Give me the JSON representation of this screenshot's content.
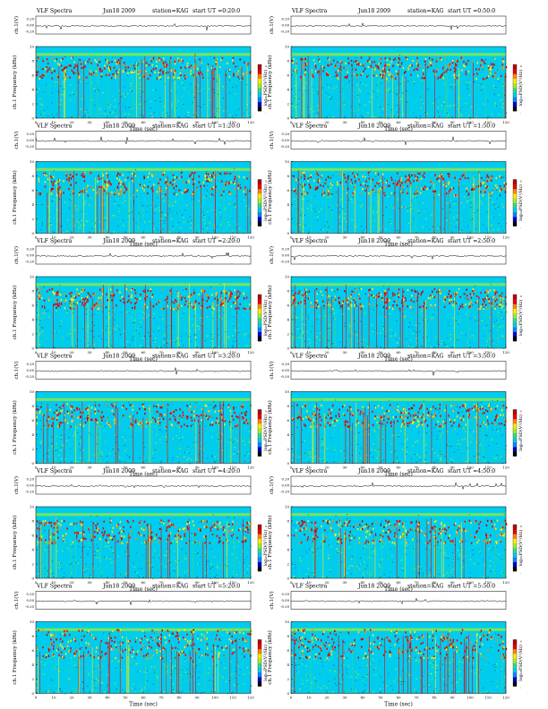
{
  "page": {
    "rows": 6,
    "cols": 2
  },
  "colors": {
    "scale": [
      "#000000",
      "#0000cc",
      "#0088ff",
      "#00ccee",
      "#33dd88",
      "#aaee22",
      "#ffee00",
      "#ff8800",
      "#ee0000",
      "#bb0000"
    ],
    "trace": "#000000"
  },
  "colorbar": {
    "label": "log₁₀PSD(V²/Hz)",
    "ticks": [
      "0",
      "-",
      "-"
    ]
  },
  "chart_data": [
    {
      "type": "heatmap",
      "title_prefix": "VLF Spectra",
      "date": "Jun18 2009",
      "station": "station=KAG",
      "start": "start  UT =0:20:0",
      "trace_label": "ch.1(V)",
      "trace_ticks": [
        "0.20",
        "0.00",
        "-0.20"
      ],
      "ylabel": "ch.1 Frequency (kHz)",
      "xlabel": "Time (sec)",
      "xlim": [
        0,
        120
      ],
      "ylim": [
        0,
        10
      ],
      "xticks": [
        "0",
        "10",
        "20",
        "30",
        "40",
        "50",
        "60",
        "70",
        "80",
        "90",
        "100",
        "110",
        "120"
      ],
      "yticks": [
        "0",
        "2",
        "4",
        "6",
        "8",
        "10"
      ],
      "band_lo_khz": 5.6,
      "band_hi_khz": 8.6,
      "cutoff_khz": 9.4
    },
    {
      "type": "heatmap",
      "title_prefix": "VLF Spectra",
      "date": "Jun18 2009",
      "station": "station=KAG",
      "start": "start  UT =0:50:0",
      "trace_label": "ch.1(V)",
      "trace_ticks": [
        "0.20",
        "0.00",
        "-0.20"
      ],
      "ylabel": "ch.1 Frequency (kHz)",
      "xlabel": "Time (sec)",
      "xlim": [
        0,
        120
      ],
      "ylim": [
        0,
        10
      ],
      "xticks": [
        "0",
        "10",
        "20",
        "30",
        "40",
        "50",
        "60",
        "70",
        "80",
        "90",
        "100",
        "110",
        "120"
      ],
      "yticks": [
        "0",
        "2",
        "4",
        "6",
        "8",
        "10"
      ],
      "band_lo_khz": 5.6,
      "band_hi_khz": 8.6,
      "cutoff_khz": 9.4
    },
    {
      "type": "heatmap",
      "title_prefix": "VLF Spectra",
      "date": "Jun18 2009",
      "station": "station=KAG",
      "start": "start  UT =1:20:0",
      "trace_label": "ch.1(V)",
      "trace_ticks": [
        "0.20",
        "0.00",
        "-0.20"
      ],
      "ylabel": "ch.1 Frequency (kHz)",
      "xlabel": "Time (sec)",
      "xlim": [
        0,
        120
      ],
      "ylim": [
        0,
        10
      ],
      "xticks": [
        "0",
        "10",
        "20",
        "30",
        "40",
        "50",
        "60",
        "70",
        "80",
        "90",
        "100",
        "110",
        "120"
      ],
      "yticks": [
        "0",
        "2",
        "4",
        "6",
        "8",
        "10"
      ],
      "band_lo_khz": 5.4,
      "band_hi_khz": 8.6,
      "cutoff_khz": 9.4
    },
    {
      "type": "heatmap",
      "title_prefix": "VLF Spectra",
      "date": "Jun18 2009",
      "station": "station=KAG",
      "start": "start  UT =1:50:0",
      "trace_label": "ch.1(V)",
      "trace_ticks": [
        "0.20",
        "0.00",
        "-0.20"
      ],
      "ylabel": "ch.1 Frequency (kHz)",
      "xlabel": "Time (sec)",
      "xlim": [
        0,
        120
      ],
      "ylim": [
        0,
        10
      ],
      "xticks": [
        "0",
        "10",
        "20",
        "30",
        "40",
        "50",
        "60",
        "70",
        "80",
        "90",
        "100",
        "110",
        "120"
      ],
      "yticks": [
        "0",
        "2",
        "4",
        "6",
        "8",
        "10"
      ],
      "band_lo_khz": 5.4,
      "band_hi_khz": 8.6,
      "cutoff_khz": 9.4
    },
    {
      "type": "heatmap",
      "title_prefix": "VLF Spectra",
      "date": "Jun18 2009",
      "station": "station=KAG",
      "start": "start  UT =2:20:0",
      "trace_label": "ch.1(V)",
      "trace_ticks": [
        "0.20",
        "0.00",
        "-0.20"
      ],
      "ylabel": "ch.1 Frequency (kHz)",
      "xlabel": "Time (sec)",
      "xlim": [
        0,
        120
      ],
      "ylim": [
        0,
        10
      ],
      "xticks": [
        "0",
        "10",
        "20",
        "30",
        "40",
        "50",
        "60",
        "70",
        "80",
        "90",
        "100",
        "110",
        "120"
      ],
      "yticks": [
        "0",
        "2",
        "4",
        "6",
        "8",
        "10"
      ],
      "band_lo_khz": 5.6,
      "band_hi_khz": 8.4,
      "cutoff_khz": 9.4
    },
    {
      "type": "heatmap",
      "title_prefix": "VLF Spectra",
      "date": "Jun18 2009",
      "station": "station=KAG",
      "start": "start  UT =2:50:0",
      "trace_label": "ch.1(V)",
      "trace_ticks": [
        "0.20",
        "0.00",
        "-0.20"
      ],
      "ylabel": "ch.1 Frequency (kHz)",
      "xlabel": "Time (sec)",
      "xlim": [
        0,
        120
      ],
      "ylim": [
        0,
        10
      ],
      "xticks": [
        "0",
        "10",
        "20",
        "30",
        "40",
        "50",
        "60",
        "70",
        "80",
        "90",
        "100",
        "110",
        "120"
      ],
      "yticks": [
        "0",
        "2",
        "4",
        "6",
        "8",
        "10"
      ],
      "band_lo_khz": 5.6,
      "band_hi_khz": 8.4,
      "cutoff_khz": 9.4
    },
    {
      "type": "heatmap",
      "title_prefix": "VLF Spectra",
      "date": "Jun18 2009",
      "station": "station=KAG",
      "start": "start  UT =3:20:0",
      "trace_label": "ch.1(V)",
      "trace_ticks": [
        "0.20",
        "0.00",
        "-0.20"
      ],
      "ylabel": "ch.1 Frequency (kHz)",
      "xlabel": "Time (sec)",
      "xlim": [
        0,
        120
      ],
      "ylim": [
        0,
        10
      ],
      "xticks": [
        "0",
        "10",
        "20",
        "30",
        "40",
        "50",
        "60",
        "70",
        "80",
        "90",
        "100",
        "110",
        "120"
      ],
      "yticks": [
        "0",
        "2",
        "4",
        "6",
        "8",
        "10"
      ],
      "band_lo_khz": 5.2,
      "band_hi_khz": 8.4,
      "cutoff_khz": 9.4
    },
    {
      "type": "heatmap",
      "title_prefix": "VLF Spectra",
      "date": "Jun18 2009",
      "station": "station=KAG",
      "start": "start  UT =3:50:0",
      "trace_label": "ch.1(V)",
      "trace_ticks": [
        "0.20",
        "0.00",
        "-0.20"
      ],
      "ylabel": "ch.1 Frequency (kHz)",
      "xlabel": "Time (sec)",
      "xlim": [
        0,
        120
      ],
      "ylim": [
        0,
        10
      ],
      "xticks": [
        "0",
        "10",
        "20",
        "30",
        "40",
        "50",
        "60",
        "70",
        "80",
        "90",
        "100",
        "110",
        "120"
      ],
      "yticks": [
        "0",
        "2",
        "4",
        "6",
        "8",
        "10"
      ],
      "band_lo_khz": 5.2,
      "band_hi_khz": 8.4,
      "cutoff_khz": 9.4
    },
    {
      "type": "heatmap",
      "title_prefix": "VLF Spectra",
      "date": "Jun18 2009",
      "station": "station=KAG",
      "start": "start  UT =4:20:0",
      "trace_label": "ch.1(V)",
      "trace_ticks": [
        "0.20",
        "0.00",
        "-0.20"
      ],
      "ylabel": "ch.1 Frequency (kHz)",
      "xlabel": "Time (sec)",
      "xlim": [
        0,
        120
      ],
      "ylim": [
        0,
        10
      ],
      "xticks": [
        "0",
        "10",
        "20",
        "30",
        "40",
        "50",
        "60",
        "70",
        "80",
        "90",
        "100",
        "110",
        "120"
      ],
      "yticks": [
        "0",
        "2",
        "4",
        "6",
        "8",
        "10"
      ],
      "band_lo_khz": 5.0,
      "band_hi_khz": 8.2,
      "cutoff_khz": 9.4
    },
    {
      "type": "heatmap",
      "title_prefix": "VLF Spectra",
      "date": "Jun18 2009",
      "station": "station=KAG",
      "start": "start  UT =4:50:0",
      "trace_label": "ch.1(V)",
      "trace_ticks": [
        "0.20",
        "0.00",
        "-0.20"
      ],
      "ylabel": "ch.1 Frequency (kHz)",
      "xlabel": "Time (sec)",
      "xlim": [
        0,
        120
      ],
      "ylim": [
        0,
        10
      ],
      "xticks": [
        "0",
        "10",
        "20",
        "30",
        "40",
        "50",
        "60",
        "70",
        "80",
        "90",
        "100",
        "110",
        "120"
      ],
      "yticks": [
        "0",
        "2",
        "4",
        "6",
        "8",
        "10"
      ],
      "band_lo_khz": 5.0,
      "band_hi_khz": 8.2,
      "cutoff_khz": 9.4
    },
    {
      "type": "heatmap",
      "title_prefix": "VLF Spectra",
      "date": "Jun18 2009",
      "station": "station=KAG",
      "start": "start  UT =5:20:0",
      "trace_label": "ch.1(V)",
      "trace_ticks": [
        "0.20",
        "0.00",
        "-0.20"
      ],
      "ylabel": "ch.1 Frequency (kHz)",
      "xlabel": "Time (sec)",
      "xlim": [
        0,
        120
      ],
      "ylim": [
        0,
        10
      ],
      "xticks": [
        "0",
        "10",
        "20",
        "30",
        "40",
        "50",
        "60",
        "70",
        "80",
        "90",
        "100",
        "110",
        "120"
      ],
      "yticks": [
        "0",
        "2",
        "4",
        "6",
        "8",
        "10"
      ],
      "band_lo_khz": 5.0,
      "band_hi_khz": 9.0,
      "cutoff_khz": 9.6
    },
    {
      "type": "heatmap",
      "title_prefix": "VLF Spectra",
      "date": "Jun18 2009",
      "station": "station=KAG",
      "start": "start  UT =5:50:0",
      "trace_label": "ch.1(V)",
      "trace_ticks": [
        "0.20",
        "0.00",
        "-0.20"
      ],
      "ylabel": "ch.1 Frequency (kHz)",
      "xlabel": "Time (sec)",
      "xlim": [
        0,
        120
      ],
      "ylim": [
        0,
        10
      ],
      "xticks": [
        "0",
        "10",
        "20",
        "30",
        "40",
        "50",
        "60",
        "70",
        "80",
        "90",
        "100",
        "110",
        "120"
      ],
      "yticks": [
        "0",
        "2",
        "4",
        "6",
        "8",
        "10"
      ],
      "band_lo_khz": 5.0,
      "band_hi_khz": 9.0,
      "cutoff_khz": 9.6
    }
  ]
}
